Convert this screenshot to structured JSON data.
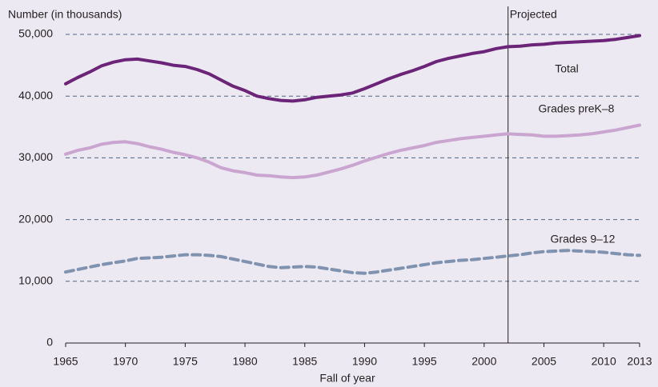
{
  "chart_data": {
    "type": "line",
    "y_label": "Number (in thousands)",
    "x_label": "Fall of year",
    "x": [
      1965,
      1966,
      1967,
      1968,
      1969,
      1970,
      1971,
      1972,
      1973,
      1974,
      1975,
      1976,
      1977,
      1978,
      1979,
      1980,
      1981,
      1982,
      1983,
      1984,
      1985,
      1986,
      1987,
      1988,
      1989,
      1990,
      1991,
      1992,
      1993,
      1994,
      1995,
      1996,
      1997,
      1998,
      1999,
      2000,
      2001,
      2002,
      2003,
      2004,
      2005,
      2006,
      2007,
      2008,
      2009,
      2010,
      2011,
      2012,
      2013
    ],
    "series": [
      {
        "name": "Total",
        "color": "#6b2478",
        "line_style": "solid",
        "values": [
          42000,
          43000,
          43900,
          44900,
          45500,
          45900,
          46000,
          45700,
          45400,
          45000,
          44800,
          44300,
          43600,
          42600,
          41600,
          40900,
          40000,
          39600,
          39300,
          39200,
          39400,
          39800,
          40000,
          40200,
          40500,
          41200,
          42000,
          42800,
          43500,
          44100,
          44800,
          45600,
          46100,
          46500,
          46900,
          47200,
          47700,
          48000,
          48100,
          48300,
          48400,
          48600,
          48700,
          48800,
          48900,
          49000,
          49200,
          49500,
          49800
        ]
      },
      {
        "name": "Grades preK–8",
        "color": "#c9a5d0",
        "line_style": "solid",
        "values": [
          30600,
          31200,
          31600,
          32200,
          32500,
          32600,
          32300,
          31800,
          31400,
          30900,
          30500,
          30000,
          29300,
          28400,
          27900,
          27600,
          27200,
          27100,
          26900,
          26800,
          26900,
          27200,
          27700,
          28200,
          28800,
          29500,
          30100,
          30700,
          31200,
          31600,
          32000,
          32500,
          32800,
          33100,
          33300,
          33500,
          33700,
          33900,
          33800,
          33700,
          33500,
          33500,
          33600,
          33700,
          33900,
          34200,
          34500,
          34900,
          35300
        ]
      },
      {
        "name": "Grades 9–12",
        "color": "#7f93b0",
        "line_style": "dashed",
        "values": [
          11500,
          11900,
          12300,
          12700,
          13000,
          13300,
          13700,
          13800,
          13900,
          14100,
          14300,
          14300,
          14200,
          14000,
          13600,
          13200,
          12800,
          12400,
          12200,
          12300,
          12400,
          12300,
          12000,
          11700,
          11400,
          11300,
          11500,
          11800,
          12100,
          12400,
          12700,
          13000,
          13200,
          13400,
          13500,
          13700,
          13900,
          14100,
          14300,
          14600,
          14800,
          14900,
          15000,
          14900,
          14800,
          14700,
          14500,
          14300,
          14200
        ]
      }
    ],
    "annotations": [
      {
        "text": "Projected",
        "x": 2002
      }
    ],
    "xlim": [
      1965,
      2013
    ],
    "xticks": [
      1965,
      1970,
      1975,
      1980,
      1985,
      1990,
      1995,
      2000,
      2005,
      2010,
      2013
    ],
    "ylim": [
      0,
      50000
    ],
    "yticks": [
      0,
      {
        "value": 10000,
        "label": "10,000"
      },
      {
        "value": 20000,
        "label": "20,000"
      },
      {
        "value": 30000,
        "label": "30,000"
      },
      {
        "value": 40000,
        "label": "40,000"
      },
      {
        "value": 50000,
        "label": "50,000"
      }
    ],
    "grid": true
  }
}
